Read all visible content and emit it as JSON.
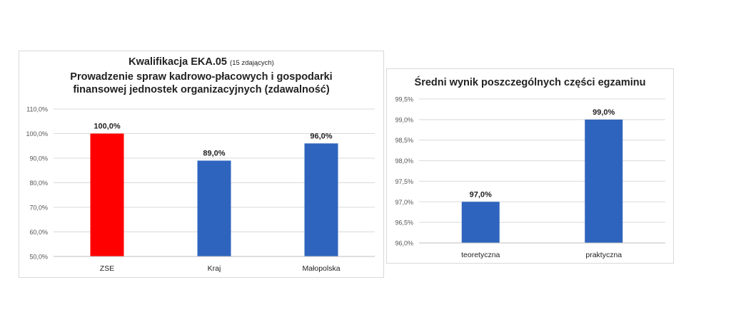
{
  "chart_data": [
    {
      "type": "bar",
      "title": "Kwalifikacja EKA.05",
      "title_note": "(15 zdających)",
      "subtitle_lines": [
        "Prowadzenie spraw kadrowo-płacowych i gospodarki",
        "finansowej jednostek organizacyjnych (zdawalność)"
      ],
      "categories": [
        "ZSE",
        "Kraj",
        "Małopolska"
      ],
      "values": [
        100.0,
        89.0,
        96.0
      ],
      "value_labels": [
        "100,0%",
        "89,0%",
        "96,0%"
      ],
      "bar_colors": [
        "#ff0000",
        "#2e64bd",
        "#2e64bd"
      ],
      "ylim": [
        50,
        110
      ],
      "yticks": [
        50,
        60,
        70,
        80,
        90,
        100,
        110
      ],
      "ytick_labels": [
        "50,0%",
        "60,0%",
        "70,0%",
        "80,0%",
        "90,0%",
        "100,0%",
        "110,0%"
      ],
      "xlabel": "",
      "ylabel": "",
      "grid": true
    },
    {
      "type": "bar",
      "title": "Średni wynik poszczególnych części egzaminu",
      "categories": [
        "teoretyczna",
        "praktyczna"
      ],
      "values": [
        97.0,
        99.0
      ],
      "value_labels": [
        "97,0%",
        "99,0%"
      ],
      "bar_colors": [
        "#2e64bd",
        "#2e64bd"
      ],
      "ylim": [
        96.0,
        99.5
      ],
      "yticks": [
        96.0,
        96.5,
        97.0,
        97.5,
        98.0,
        98.5,
        99.0,
        99.5
      ],
      "ytick_labels": [
        "96,0%",
        "96,5%",
        "97,0%",
        "97,5%",
        "98,0%",
        "98,5%",
        "99,0%",
        "99,5%"
      ],
      "xlabel": "",
      "ylabel": "",
      "grid": true
    }
  ]
}
